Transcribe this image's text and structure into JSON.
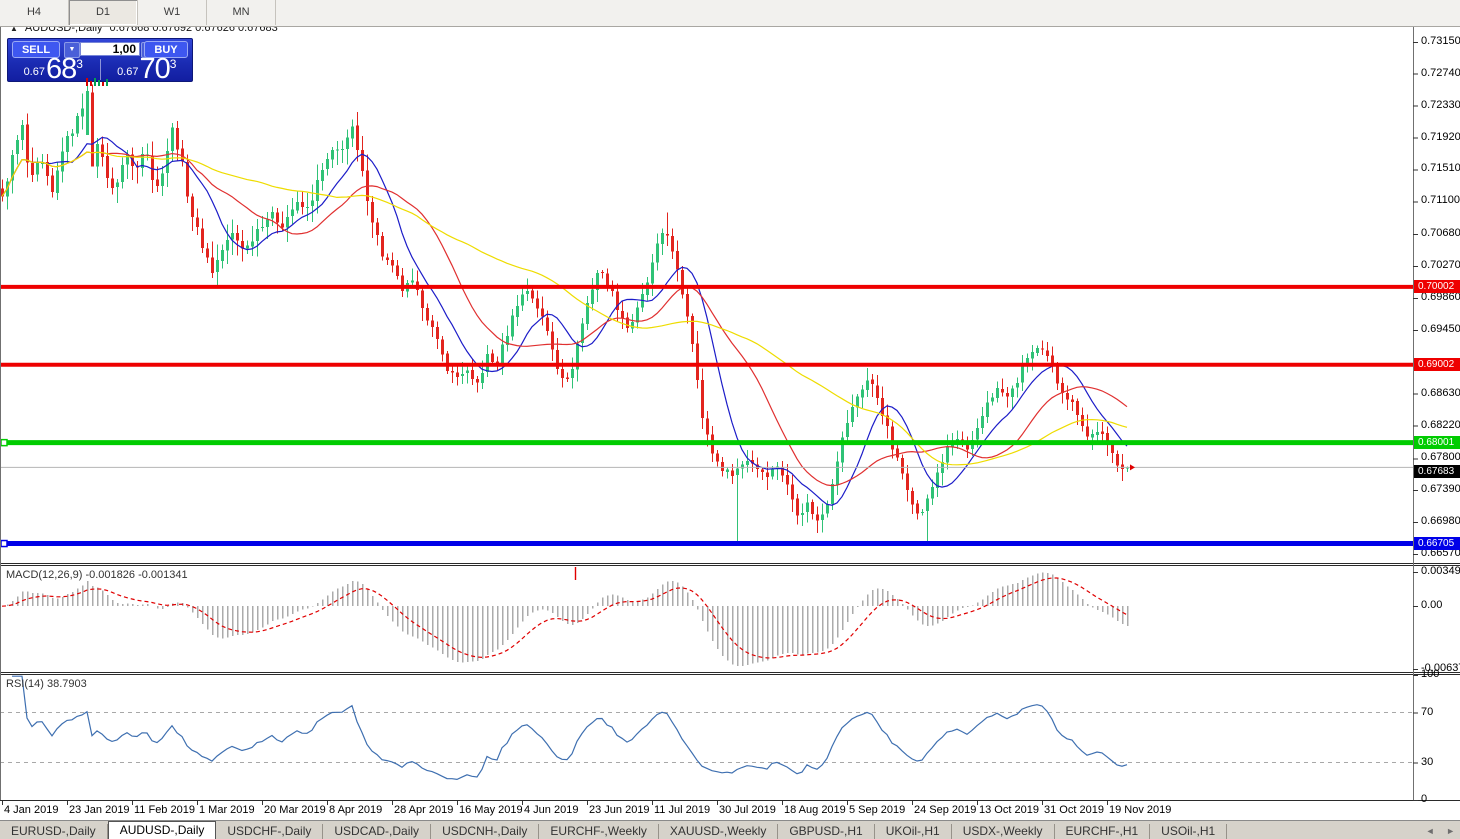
{
  "toolbar": {
    "buttons": [
      {
        "label": "H4",
        "active": false
      },
      {
        "label": "D1",
        "active": true
      },
      {
        "label": "W1",
        "active": false
      },
      {
        "label": "MN",
        "active": false
      }
    ]
  },
  "header": {
    "collapse_icon": "▲",
    "title": "AUDUSD-,Daily",
    "ohlc_text": "0.67668 0.67692 0.67626 0.67683"
  },
  "trade_panel": {
    "sell_label": "SELL",
    "buy_label": "BUY",
    "volume_value": "1,00",
    "volume_down_icon": "▼",
    "volume_up_icon": "▲",
    "sell_price_small": "0.67",
    "sell_price_big": "68",
    "sell_price_sup": "3",
    "buy_price_small": "0.67",
    "buy_price_big": "70",
    "buy_price_sup": "3",
    "tick_marks": [
      {
        "c": "#D40000",
        "h": 8
      },
      {
        "c": "#D40000",
        "h": 5
      },
      {
        "c": "#00A050",
        "h": 8
      },
      {
        "c": "#00A050",
        "h": 6
      },
      {
        "c": "#D40000",
        "h": 4
      },
      {
        "c": "#00A050",
        "h": 7
      }
    ]
  },
  "price_axis": {
    "ticks": [
      "0.73150",
      "0.72740",
      "0.72330",
      "0.71920",
      "0.71510",
      "0.71100",
      "0.70680",
      "0.70270",
      "0.69860",
      "0.69450",
      "0.68630",
      "0.68220",
      "0.67800",
      "0.67390",
      "0.66980",
      "0.66570"
    ]
  },
  "levels": [
    {
      "label": "0.70002",
      "price": 0.70002,
      "color": "#EE0000",
      "thickness": 4,
      "handle": false
    },
    {
      "label": "0.69002",
      "price": 0.69002,
      "color": "#EE0000",
      "thickness": 4,
      "handle": false
    },
    {
      "label": "0.68001",
      "price": 0.68001,
      "color": "#00CC00",
      "thickness": 5,
      "handle": true
    },
    {
      "label": "0.66705",
      "price": 0.66705,
      "color": "#0000E8",
      "thickness": 5,
      "handle": true
    }
  ],
  "bid_line": {
    "label": "0.67683",
    "price": 0.67683,
    "line_color": "#B4B4B4",
    "label_bg": "#000000"
  },
  "macd_panel": {
    "title": "MACD(12,26,9) -0.001826 -0.001341",
    "values": [
      -0.001826,
      -0.001341
    ],
    "axis_labels": [
      {
        "text": "0.00349",
        "value": 0.00349
      },
      {
        "text": "0.00",
        "value": 0
      },
      {
        "text": "-0.00637",
        "value": -0.00637
      }
    ],
    "marker_x": 575,
    "hist_color": "#ABABAB",
    "signal_color": "#E00000"
  },
  "rsi_panel": {
    "title": "RSI(14) 38.7903",
    "current": 38.7903,
    "axis_labels": [
      {
        "text": "100",
        "value": 100
      },
      {
        "text": "70",
        "value": 70
      },
      {
        "text": "30",
        "value": 30
      },
      {
        "text": "0",
        "value": 0
      }
    ],
    "levels": [
      70,
      30
    ],
    "line_color": "#3E6FB0"
  },
  "date_axis": {
    "labels": [
      "4 Jan 2019",
      "23 Jan 2019",
      "11 Feb 2019",
      "1 Mar 2019",
      "20 Mar 2019",
      "8 Apr 2019",
      "28 Apr 2019",
      "16 May 2019",
      "4 Jun 2019",
      "23 Jun 2019",
      "11 Jul 2019",
      "30 Jul 2019",
      "18 Aug 2019",
      "5 Sep 2019",
      "24 Sep 2019",
      "13 Oct 2019",
      "31 Oct 2019",
      "19 Nov 2019"
    ]
  },
  "tabs": {
    "items": [
      {
        "label": "EURUSD-,Daily",
        "active": false
      },
      {
        "label": "AUDUSD-,Daily",
        "active": true
      },
      {
        "label": "USDCHF-,Daily",
        "active": false
      },
      {
        "label": "USDCAD-,Daily",
        "active": false
      },
      {
        "label": "USDCNH-,Daily",
        "active": false
      },
      {
        "label": "EURCHF-,Weekly",
        "active": false
      },
      {
        "label": "XAUUSD-,Weekly",
        "active": false
      },
      {
        "label": "GBPUSD-,H1",
        "active": false
      },
      {
        "label": "UKOil-,H1",
        "active": false
      },
      {
        "label": "USDX-,Weekly",
        "active": false
      },
      {
        "label": "EURCHF-,H1",
        "active": false
      },
      {
        "label": "USOil-,H1",
        "active": false
      }
    ],
    "scroll_left_icon": "◄",
    "scroll_right_icon": "►"
  },
  "chart_data": {
    "type": "candlestick",
    "symbol": "AUDUSD-",
    "timeframe": "Daily",
    "current_ohlc": {
      "open": 0.67668,
      "high": 0.67692,
      "low": 0.67626,
      "close": 0.67683
    },
    "ylim": [
      0.66455,
      0.7334
    ],
    "horizontal_levels": [
      0.70002,
      0.69002,
      0.68001,
      0.66705
    ],
    "up_color": "#2FC276",
    "down_color": "#E2241E",
    "candle_step": 5,
    "candle_x0": 2,
    "candle_count": 226,
    "close_path_anchors": [
      [
        2,
        0.7113
      ],
      [
        14,
        0.7177
      ],
      [
        22,
        0.7205
      ],
      [
        30,
        0.7132
      ],
      [
        40,
        0.7164
      ],
      [
        52,
        0.7119
      ],
      [
        62,
        0.7177
      ],
      [
        75,
        0.7209
      ],
      [
        88,
        0.7253
      ],
      [
        95,
        0.7196
      ],
      [
        105,
        0.7151
      ],
      [
        115,
        0.7119
      ],
      [
        125,
        0.7177
      ],
      [
        135,
        0.7145
      ],
      [
        145,
        0.7189
      ],
      [
        155,
        0.7119
      ],
      [
        162,
        0.7151
      ],
      [
        172,
        0.7202
      ],
      [
        180,
        0.717
      ],
      [
        190,
        0.71
      ],
      [
        200,
        0.7061
      ],
      [
        212,
        0.702
      ],
      [
        222,
        0.7048
      ],
      [
        232,
        0.7068
      ],
      [
        245,
        0.7048
      ],
      [
        258,
        0.7077
      ],
      [
        270,
        0.7093
      ],
      [
        282,
        0.7081
      ],
      [
        295,
        0.7106
      ],
      [
        308,
        0.71
      ],
      [
        318,
        0.7138
      ],
      [
        330,
        0.717
      ],
      [
        340,
        0.7177
      ],
      [
        352,
        0.7202
      ],
      [
        362,
        0.7145
      ],
      [
        372,
        0.7087
      ],
      [
        382,
        0.7042
      ],
      [
        392,
        0.7023
      ],
      [
        402,
        0.6997
      ],
      [
        412,
        0.7004
      ],
      [
        422,
        0.6978
      ],
      [
        432,
        0.6946
      ],
      [
        445,
        0.6901
      ],
      [
        455,
        0.6882
      ],
      [
        465,
        0.6895
      ],
      [
        475,
        0.6869
      ],
      [
        488,
        0.6914
      ],
      [
        495,
        0.6895
      ],
      [
        505,
        0.6933
      ],
      [
        518,
        0.6984
      ],
      [
        528,
        0.6997
      ],
      [
        538,
        0.6972
      ],
      [
        548,
        0.694
      ],
      [
        558,
        0.6895
      ],
      [
        568,
        0.6876
      ],
      [
        578,
        0.6933
      ],
      [
        588,
        0.6984
      ],
      [
        598,
        0.7023
      ],
      [
        608,
        0.7004
      ],
      [
        618,
        0.6972
      ],
      [
        628,
        0.6946
      ],
      [
        638,
        0.6972
      ],
      [
        648,
        0.701
      ],
      [
        658,
        0.7055
      ],
      [
        665,
        0.7081
      ],
      [
        672,
        0.7042
      ],
      [
        680,
        0.7004
      ],
      [
        688,
        0.6959
      ],
      [
        695,
        0.6908
      ],
      [
        702,
        0.6831
      ],
      [
        710,
        0.6793
      ],
      [
        718,
        0.6773
      ],
      [
        728,
        0.676
      ],
      [
        738,
        0.6767
      ],
      [
        748,
        0.678
      ],
      [
        758,
        0.6767
      ],
      [
        768,
        0.676
      ],
      [
        778,
        0.6773
      ],
      [
        788,
        0.6741
      ],
      [
        798,
        0.6709
      ],
      [
        808,
        0.6722
      ],
      [
        818,
        0.6696
      ],
      [
        828,
        0.6728
      ],
      [
        838,
        0.6786
      ],
      [
        848,
        0.6831
      ],
      [
        858,
        0.6863
      ],
      [
        868,
        0.6882
      ],
      [
        876,
        0.6863
      ],
      [
        884,
        0.6831
      ],
      [
        892,
        0.6793
      ],
      [
        900,
        0.6767
      ],
      [
        908,
        0.6741
      ],
      [
        918,
        0.6703
      ],
      [
        928,
        0.6728
      ],
      [
        938,
        0.6767
      ],
      [
        948,
        0.6793
      ],
      [
        958,
        0.6805
      ],
      [
        968,
        0.6786
      ],
      [
        978,
        0.6818
      ],
      [
        988,
        0.6857
      ],
      [
        998,
        0.6869
      ],
      [
        1008,
        0.6857
      ],
      [
        1018,
        0.6882
      ],
      [
        1028,
        0.6914
      ],
      [
        1038,
        0.692
      ],
      [
        1048,
        0.6907
      ],
      [
        1058,
        0.6876
      ],
      [
        1068,
        0.6857
      ],
      [
        1078,
        0.6838
      ],
      [
        1088,
        0.6805
      ],
      [
        1098,
        0.6818
      ],
      [
        1108,
        0.6793
      ],
      [
        1118,
        0.6773
      ],
      [
        1127,
        0.67683
      ]
    ],
    "overrides": {
      "17": {
        "open": 0.7195,
        "close": 0.7252,
        "high": 0.7262
      },
      "18": {
        "open": 0.725,
        "close": 0.7155
      },
      "70": {
        "high": 0.7215
      },
      "133": {
        "high": 0.7096
      },
      "147": {
        "low": 0.6672
      },
      "163": {
        "low": 0.6684
      },
      "185": {
        "low": 0.6673
      },
      "225": {
        "open": 0.67668,
        "high": 0.67692,
        "low": 0.67626,
        "close": 0.67683
      }
    },
    "moving_averages": [
      {
        "period": 10,
        "color": "#1C1CC8"
      },
      {
        "period": 22,
        "color": "#E03030"
      },
      {
        "period": 50,
        "color": "#EEDC00"
      }
    ],
    "macd": {
      "fast": 12,
      "slow": 26,
      "signal": 9
    },
    "rsi": {
      "period": 14
    }
  }
}
